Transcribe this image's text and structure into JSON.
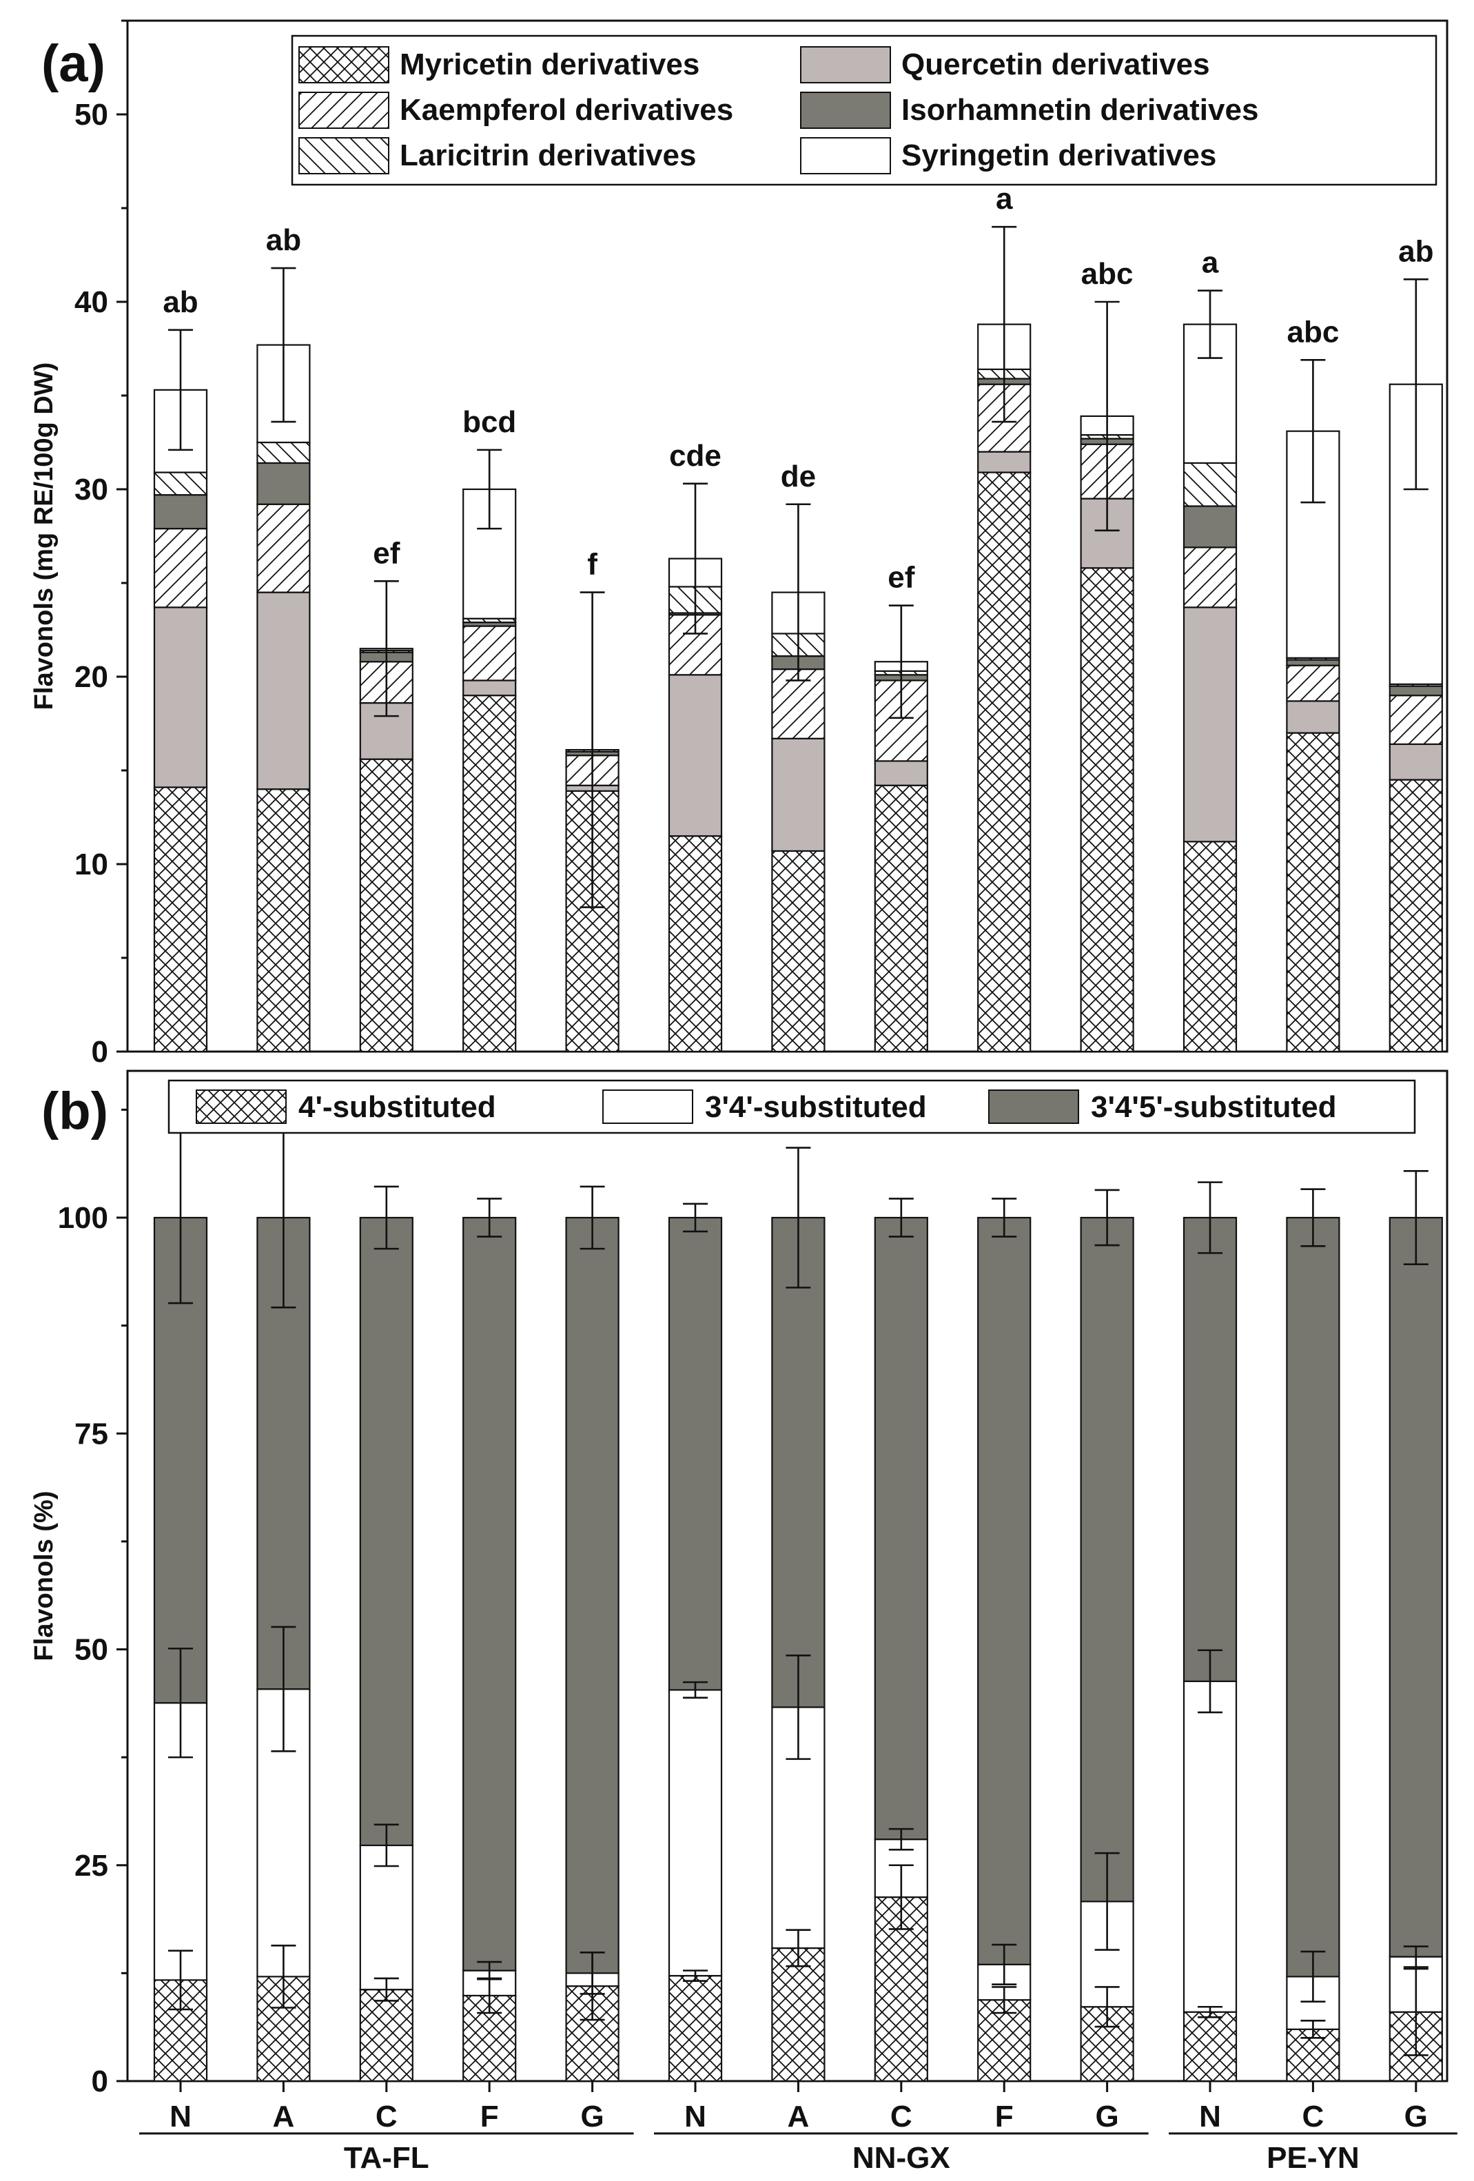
{
  "chart_data": [
    {
      "panel": "a",
      "type": "stacked-bar",
      "panel_label": "(a)",
      "ylabel": "Flavonols (mg RE/100g DW)",
      "xlabel": "",
      "ylim": [
        0,
        55
      ],
      "yticks": [
        0,
        10,
        20,
        30,
        40,
        50
      ],
      "grid": false,
      "legend_position": "top",
      "categories": [
        "N",
        "A",
        "C",
        "F",
        "G",
        "N",
        "A",
        "C",
        "F",
        "G",
        "N",
        "C",
        "G"
      ],
      "groups": [
        {
          "name": "TA-FL",
          "start": 0,
          "end": 4
        },
        {
          "name": "NN-GX",
          "start": 5,
          "end": 9
        },
        {
          "name": "PE-YN",
          "start": 10,
          "end": 12
        }
      ],
      "series": [
        {
          "name": "Myricetin derivatives",
          "pattern": "crosshatch",
          "color": "#ffffff",
          "values": [
            14.1,
            14.0,
            15.6,
            19.0,
            13.9,
            11.5,
            10.7,
            14.2,
            30.9,
            25.8,
            11.2,
            17.0,
            14.5
          ]
        },
        {
          "name": "Quercetin derivatives",
          "pattern": "solid",
          "color": "#bfb6b6",
          "values": [
            9.6,
            10.5,
            3.0,
            0.8,
            0.3,
            8.6,
            6.0,
            1.3,
            1.1,
            3.7,
            12.5,
            1.7,
            1.9
          ]
        },
        {
          "name": "Kaempferol derivatives",
          "pattern": "diag-right",
          "color": "#ffffff",
          "values": [
            4.2,
            4.7,
            2.2,
            2.9,
            1.6,
            3.2,
            3.7,
            4.3,
            3.6,
            2.9,
            3.2,
            1.9,
            2.6
          ]
        },
        {
          "name": "Isorhamnetin derivatives",
          "pattern": "solid",
          "color": "#7b7b73",
          "values": [
            1.8,
            2.2,
            0.5,
            0.2,
            0.2,
            0.1,
            0.7,
            0.3,
            0.3,
            0.3,
            2.2,
            0.3,
            0.5
          ]
        },
        {
          "name": "Laricitrin derivatives",
          "pattern": "diag-left",
          "color": "#ffffff",
          "values": [
            1.2,
            1.1,
            0.1,
            0.2,
            0.1,
            1.4,
            1.2,
            0.2,
            0.5,
            0.2,
            2.3,
            0.1,
            0.1
          ]
        },
        {
          "name": "Syringetin derivatives",
          "pattern": "solid",
          "color": "#ffffff",
          "values": [
            4.4,
            5.2,
            0.1,
            6.9,
            0.0,
            1.5,
            2.2,
            0.5,
            2.4,
            1.0,
            7.4,
            12.1,
            16.0
          ]
        }
      ],
      "totals": [
        35.3,
        37.7,
        21.5,
        30.0,
        16.1,
        26.3,
        24.5,
        20.8,
        38.8,
        33.9,
        38.8,
        33.1,
        35.6
      ],
      "errors": [
        3.2,
        4.1,
        3.6,
        2.1,
        8.4,
        4.0,
        4.7,
        3.0,
        5.2,
        6.1,
        1.8,
        3.8,
        5.6
      ],
      "significance": [
        "ab",
        "ab",
        "ef",
        "bcd",
        "f",
        "cde",
        "de",
        "ef",
        "a",
        "abc",
        "a",
        "abc",
        "ab"
      ]
    },
    {
      "panel": "b",
      "type": "stacked-bar",
      "panel_label": "(b)",
      "ylabel": "Flavonols (%)",
      "xlabel": "",
      "ylim": [
        0,
        117
      ],
      "yticks": [
        0,
        25,
        50,
        75,
        100
      ],
      "grid": false,
      "legend_position": "top",
      "categories": [
        "N",
        "A",
        "C",
        "F",
        "G",
        "N",
        "A",
        "C",
        "F",
        "G",
        "N",
        "C",
        "G"
      ],
      "groups": [
        {
          "name": "TA-FL",
          "start": 0,
          "end": 4
        },
        {
          "name": "NN-GX",
          "start": 5,
          "end": 9
        },
        {
          "name": "PE-YN",
          "start": 10,
          "end": 12
        }
      ],
      "series": [
        {
          "name": "4'-substituted",
          "pattern": "crosshatch",
          "color": "#ffffff",
          "values": [
            11.7,
            12.1,
            10.6,
            9.9,
            11.0,
            12.2,
            15.4,
            21.3,
            9.4,
            8.6,
            8.0,
            6.0,
            8.0
          ],
          "errors": [
            3.4,
            3.6,
            1.3,
            2.0,
            3.9,
            0.6,
            2.1,
            3.7,
            1.5,
            2.3,
            0.6,
            1.0,
            5.0
          ]
        },
        {
          "name": "3'4'-substituted",
          "pattern": "solid",
          "color": "#ffffff",
          "values": [
            32.1,
            33.3,
            16.7,
            2.9,
            1.5,
            33.1,
            27.9,
            6.7,
            4.1,
            12.2,
            38.3,
            6.1,
            6.4
          ],
          "errors": [
            6.3,
            7.2,
            2.4,
            1.0,
            2.4,
            0.9,
            6.0,
            1.2,
            2.3,
            5.6,
            3.6,
            2.9,
            1.2
          ]
        },
        {
          "name": "3'4'5'-substituted",
          "pattern": "solid",
          "color": "#777770",
          "values": [
            56.2,
            54.6,
            72.7,
            87.2,
            87.5,
            54.7,
            56.7,
            72.0,
            86.5,
            79.2,
            53.7,
            87.9,
            85.6
          ],
          "errors": [
            9.9,
            10.4,
            3.6,
            2.2,
            3.6,
            1.6,
            8.1,
            2.2,
            2.2,
            3.2,
            4.1,
            3.3,
            5.4
          ]
        }
      ]
    }
  ]
}
